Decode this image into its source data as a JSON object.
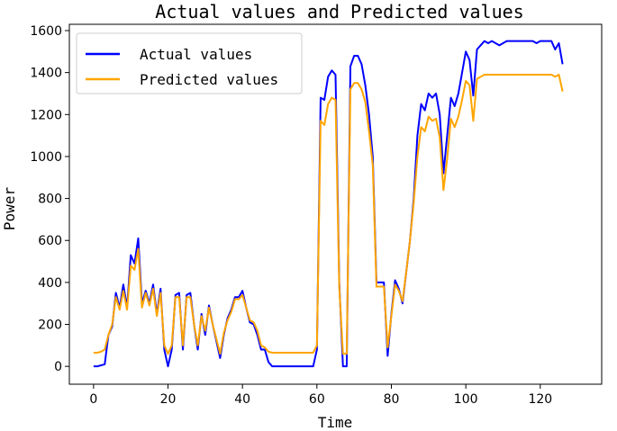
{
  "chart_data": {
    "type": "line",
    "title": "Actual values and Predicted values",
    "xlabel": "Time",
    "ylabel": "Power",
    "xlim": [
      -6.5,
      136.5
    ],
    "ylim": [
      -85,
      1630
    ],
    "xticks": [
      0,
      20,
      40,
      60,
      80,
      100,
      120
    ],
    "yticks": [
      0,
      200,
      400,
      600,
      800,
      1000,
      1200,
      1400,
      1600
    ],
    "grid": false,
    "legend_position": "top-left",
    "series": [
      {
        "name": "Actual values",
        "color": "#0000ff",
        "values": [
          0,
          0,
          5,
          10,
          150,
          190,
          350,
          280,
          390,
          280,
          530,
          490,
          610,
          300,
          360,
          300,
          390,
          250,
          370,
          80,
          0,
          80,
          340,
          350,
          80,
          340,
          350,
          200,
          80,
          250,
          150,
          290,
          200,
          120,
          40,
          150,
          230,
          270,
          330,
          330,
          360,
          280,
          210,
          200,
          150,
          80,
          80,
          20,
          0,
          0,
          0,
          0,
          0,
          0,
          0,
          0,
          0,
          0,
          0,
          0,
          80,
          1280,
          1270,
          1380,
          1410,
          1390,
          400,
          0,
          0,
          1430,
          1480,
          1480,
          1440,
          1340,
          1200,
          1000,
          400,
          400,
          400,
          50,
          250,
          410,
          370,
          300,
          450,
          600,
          800,
          1100,
          1250,
          1220,
          1300,
          1280,
          1300,
          1200,
          920,
          1100,
          1280,
          1240,
          1300,
          1400,
          1500,
          1460,
          1290,
          1510,
          1530,
          1550,
          1540,
          1550,
          1540,
          1530,
          1540,
          1550,
          1550,
          1550,
          1550,
          1550,
          1550,
          1550,
          1550,
          1540,
          1550,
          1550,
          1550,
          1550,
          1510,
          1540,
          1440
        ]
      },
      {
        "name": "Predicted values",
        "color": "#ffa500",
        "values": [
          65,
          65,
          70,
          80,
          150,
          200,
          330,
          270,
          360,
          270,
          480,
          460,
          560,
          280,
          350,
          290,
          370,
          240,
          350,
          100,
          60,
          100,
          330,
          330,
          100,
          330,
          330,
          200,
          100,
          240,
          170,
          280,
          200,
          130,
          60,
          160,
          220,
          260,
          320,
          320,
          340,
          280,
          220,
          210,
          170,
          100,
          90,
          70,
          65,
          65,
          65,
          65,
          65,
          65,
          65,
          65,
          65,
          65,
          65,
          65,
          100,
          1170,
          1150,
          1250,
          1280,
          1270,
          380,
          60,
          60,
          1320,
          1350,
          1350,
          1320,
          1260,
          1120,
          960,
          380,
          380,
          380,
          90,
          240,
          390,
          360,
          310,
          450,
          600,
          780,
          1000,
          1140,
          1120,
          1190,
          1170,
          1180,
          1090,
          840,
          990,
          1180,
          1140,
          1190,
          1270,
          1360,
          1340,
          1170,
          1370,
          1380,
          1390,
          1390,
          1390,
          1390,
          1390,
          1390,
          1390,
          1390,
          1390,
          1390,
          1390,
          1390,
          1390,
          1390,
          1390,
          1390,
          1390,
          1390,
          1390,
          1380,
          1390,
          1310
        ]
      }
    ]
  }
}
